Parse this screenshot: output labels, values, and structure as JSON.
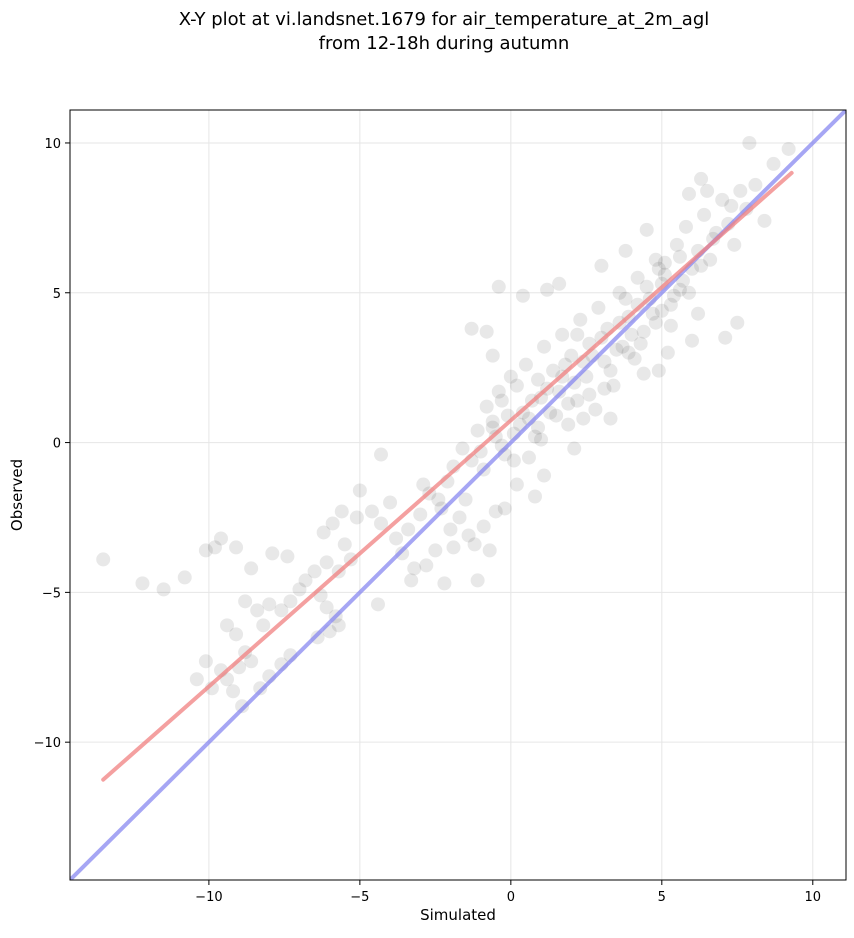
{
  "chart_data": {
    "type": "scatter",
    "title_line1": "X-Y plot at vi.landsnet.1679 for air_temperature_at_2m_agl",
    "title_line2": "from 12-18h during autumn",
    "xlabel": "Simulated",
    "ylabel": "Observed",
    "xlim": [
      -14.6,
      11.1
    ],
    "ylim": [
      -14.6,
      11.1
    ],
    "xticks": [
      -10,
      -5,
      0,
      5,
      10
    ],
    "yticks": [
      -10,
      -5,
      0,
      5,
      10
    ],
    "xtick_labels": [
      "−10",
      "−5",
      "0",
      "5",
      "10"
    ],
    "ytick_labels": [
      "−10",
      "−5",
      "0",
      "5",
      "10"
    ],
    "grid": true,
    "point_style": {
      "color": "#000000",
      "opacity": 0.09
    },
    "points": [
      [
        -13.5,
        -3.9
      ],
      [
        -12.2,
        -4.7
      ],
      [
        -11.5,
        -4.9
      ],
      [
        -10.8,
        -4.5
      ],
      [
        -10.1,
        -3.6
      ],
      [
        -9.8,
        -3.5
      ],
      [
        -9.6,
        -3.2
      ],
      [
        -9.1,
        -3.5
      ],
      [
        -8.6,
        -4.2
      ],
      [
        -7.9,
        -3.7
      ],
      [
        -7.4,
        -3.8
      ],
      [
        -10.4,
        -7.9
      ],
      [
        -10.1,
        -7.3
      ],
      [
        -9.9,
        -8.2
      ],
      [
        -9.6,
        -7.6
      ],
      [
        -9.4,
        -7.9
      ],
      [
        -9.2,
        -8.3
      ],
      [
        -9.0,
        -7.5
      ],
      [
        -8.8,
        -7.0
      ],
      [
        -8.6,
        -7.3
      ],
      [
        -8.9,
        -8.8
      ],
      [
        -8.3,
        -8.2
      ],
      [
        -8.0,
        -7.8
      ],
      [
        -7.6,
        -7.4
      ],
      [
        -7.3,
        -7.1
      ],
      [
        -9.4,
        -6.1
      ],
      [
        -9.1,
        -6.4
      ],
      [
        -8.8,
        -5.3
      ],
      [
        -8.4,
        -5.6
      ],
      [
        -8.2,
        -6.1
      ],
      [
        -8.0,
        -5.4
      ],
      [
        -7.6,
        -5.6
      ],
      [
        -7.3,
        -5.3
      ],
      [
        -7.0,
        -4.9
      ],
      [
        -6.8,
        -4.6
      ],
      [
        -6.5,
        -4.3
      ],
      [
        -6.3,
        -5.1
      ],
      [
        -6.1,
        -5.5
      ],
      [
        -6.0,
        -6.3
      ],
      [
        -5.8,
        -5.8
      ],
      [
        -5.7,
        -6.1
      ],
      [
        -6.4,
        -6.5
      ],
      [
        -6.1,
        -4.0
      ],
      [
        -5.7,
        -4.3
      ],
      [
        -5.5,
        -3.4
      ],
      [
        -5.3,
        -3.9
      ],
      [
        -6.2,
        -3.0
      ],
      [
        -5.9,
        -2.7
      ],
      [
        -5.6,
        -2.3
      ],
      [
        -5.1,
        -2.5
      ],
      [
        -5.0,
        -1.6
      ],
      [
        -4.6,
        -2.3
      ],
      [
        -4.3,
        -2.7
      ],
      [
        -4.0,
        -2.0
      ],
      [
        -3.8,
        -3.2
      ],
      [
        -3.6,
        -3.7
      ],
      [
        -3.4,
        -2.9
      ],
      [
        -3.2,
        -4.2
      ],
      [
        -3.0,
        -2.4
      ],
      [
        -2.9,
        -1.4
      ],
      [
        -2.7,
        -1.7
      ],
      [
        -2.5,
        -3.6
      ],
      [
        -2.3,
        -2.2
      ],
      [
        -2.2,
        -4.7
      ],
      [
        -2.0,
        -2.9
      ],
      [
        -4.4,
        -5.4
      ],
      [
        -4.3,
        -0.4
      ],
      [
        -3.3,
        -4.6
      ],
      [
        -2.8,
        -4.1
      ],
      [
        -1.9,
        -3.5
      ],
      [
        -1.7,
        -2.5
      ],
      [
        -1.5,
        -1.9
      ],
      [
        -1.4,
        -3.1
      ],
      [
        -1.2,
        -3.4
      ],
      [
        -1.1,
        -4.6
      ],
      [
        -0.9,
        -2.8
      ],
      [
        -0.7,
        -3.6
      ],
      [
        -0.5,
        -2.3
      ],
      [
        -2.4,
        -1.9
      ],
      [
        -2.1,
        -1.3
      ],
      [
        -1.9,
        -0.8
      ],
      [
        -1.6,
        -0.2
      ],
      [
        -1.3,
        -0.6
      ],
      [
        -1.1,
        0.4
      ],
      [
        -0.9,
        -0.9
      ],
      [
        -0.8,
        1.2
      ],
      [
        -0.6,
        0.5
      ],
      [
        -0.4,
        1.7
      ],
      [
        -0.3,
        -0.1
      ],
      [
        -0.1,
        0.9
      ],
      [
        0.1,
        0.3
      ],
      [
        0.2,
        1.9
      ],
      [
        0.3,
        0.6
      ],
      [
        0.5,
        2.6
      ],
      [
        0.6,
        -0.5
      ],
      [
        0.7,
        1.4
      ],
      [
        0.9,
        2.1
      ],
      [
        1.0,
        0.1
      ],
      [
        1.1,
        3.2
      ],
      [
        1.3,
        1.0
      ],
      [
        1.4,
        2.4
      ],
      [
        1.6,
        1.7
      ],
      [
        1.7,
        3.6
      ],
      [
        1.9,
        0.6
      ],
      [
        2.0,
        2.9
      ],
      [
        2.2,
        1.4
      ],
      [
        2.3,
        4.1
      ],
      [
        2.5,
        2.2
      ],
      [
        2.6,
        3.3
      ],
      [
        2.8,
        1.1
      ],
      [
        2.9,
        4.5
      ],
      [
        3.1,
        2.7
      ],
      [
        3.2,
        3.8
      ],
      [
        3.4,
        1.9
      ],
      [
        3.6,
        5.0
      ],
      [
        3.7,
        3.2
      ],
      [
        3.9,
        4.2
      ],
      [
        4.1,
        2.8
      ],
      [
        4.2,
        5.5
      ],
      [
        4.4,
        3.7
      ],
      [
        4.6,
        4.8
      ],
      [
        4.8,
        6.1
      ],
      [
        5.0,
        4.4
      ],
      [
        5.1,
        5.6
      ],
      [
        5.3,
        3.9
      ],
      [
        5.5,
        6.6
      ],
      [
        5.6,
        5.1
      ],
      [
        5.8,
        7.2
      ],
      [
        6.0,
        5.8
      ],
      [
        6.2,
        6.4
      ],
      [
        6.4,
        7.6
      ],
      [
        6.6,
        6.1
      ],
      [
        6.8,
        7.0
      ],
      [
        7.0,
        8.1
      ],
      [
        7.2,
        7.3
      ],
      [
        7.4,
        6.6
      ],
      [
        7.6,
        8.4
      ],
      [
        7.8,
        7.8
      ],
      [
        8.1,
        8.6
      ],
      [
        8.4,
        7.4
      ],
      [
        8.7,
        9.3
      ],
      [
        9.2,
        9.8
      ],
      [
        7.9,
        10.0
      ],
      [
        6.3,
        8.8
      ],
      [
        5.9,
        8.3
      ],
      [
        4.5,
        7.1
      ],
      [
        3.8,
        6.4
      ],
      [
        3.0,
        5.9
      ],
      [
        1.6,
        5.3
      ],
      [
        -0.4,
        5.2
      ],
      [
        -0.8,
        3.7
      ],
      [
        -1.3,
        3.8
      ],
      [
        -0.6,
        2.9
      ],
      [
        0.4,
        4.9
      ],
      [
        1.2,
        5.1
      ],
      [
        0.8,
        -1.8
      ],
      [
        0.2,
        -1.4
      ],
      [
        -0.2,
        -2.2
      ],
      [
        1.1,
        -1.1
      ],
      [
        2.1,
        -0.2
      ],
      [
        3.3,
        0.8
      ],
      [
        4.4,
        2.3
      ],
      [
        5.2,
        3.0
      ],
      [
        6.2,
        4.3
      ],
      [
        7.1,
        3.5
      ],
      [
        7.5,
        4.0
      ],
      [
        6.0,
        3.4
      ],
      [
        4.9,
        2.4
      ],
      [
        -0.3,
        1.4
      ],
      [
        0.0,
        2.2
      ],
      [
        0.4,
        1.0
      ],
      [
        0.8,
        0.2
      ],
      [
        1.2,
        1.8
      ],
      [
        1.5,
        0.9
      ],
      [
        1.8,
        2.6
      ],
      [
        2.1,
        2.0
      ],
      [
        2.4,
        0.8
      ],
      [
        2.7,
        2.9
      ],
      [
        3.0,
        3.5
      ],
      [
        3.3,
        2.4
      ],
      [
        3.6,
        4.0
      ],
      [
        3.9,
        3.0
      ],
      [
        4.2,
        4.6
      ],
      [
        4.5,
        5.2
      ],
      [
        4.8,
        4.0
      ],
      [
        5.1,
        6.0
      ],
      [
        5.4,
        4.9
      ],
      [
        5.7,
        5.4
      ],
      [
        -0.5,
        0.2
      ],
      [
        -0.2,
        -0.4
      ],
      [
        0.6,
        0.8
      ],
      [
        1.0,
        1.5
      ],
      [
        1.9,
        1.3
      ],
      [
        2.2,
        3.6
      ],
      [
        2.6,
        1.6
      ],
      [
        3.5,
        3.1
      ],
      [
        4.0,
        3.6
      ],
      [
        4.7,
        4.3
      ],
      [
        5.0,
        5.3
      ],
      [
        5.6,
        6.2
      ],
      [
        -1.0,
        -0.3
      ],
      [
        -0.6,
        0.7
      ],
      [
        0.1,
        -0.6
      ],
      [
        0.9,
        0.5
      ],
      [
        1.7,
        2.2
      ],
      [
        2.4,
        2.7
      ],
      [
        3.1,
        1.8
      ],
      [
        3.8,
        4.8
      ],
      [
        4.3,
        3.3
      ],
      [
        4.9,
        5.8
      ],
      [
        5.3,
        4.6
      ],
      [
        5.9,
        5.0
      ],
      [
        6.3,
        5.9
      ],
      [
        6.7,
        6.8
      ],
      [
        7.3,
        7.9
      ],
      [
        6.5,
        8.4
      ]
    ],
    "regression_line": {
      "x": [
        -13.5,
        9.3
      ],
      "y": [
        -11.25,
        9.0
      ],
      "color": "#f08080"
    },
    "one_to_one_line": {
      "color": "#8080f0"
    }
  }
}
